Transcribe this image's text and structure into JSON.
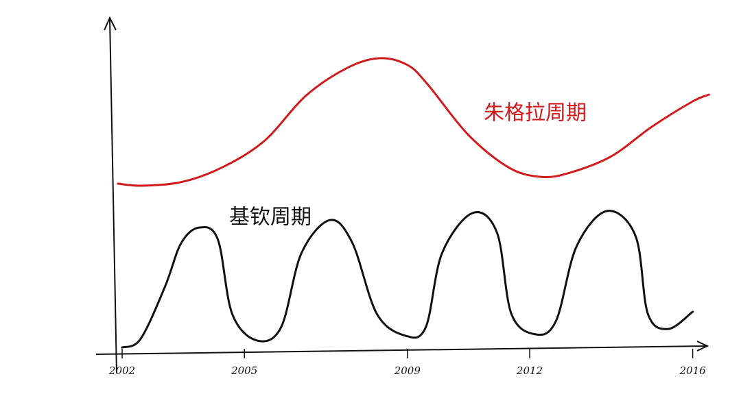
{
  "chart_data": {
    "type": "line",
    "xlim": [
      2001.8,
      2016.4
    ],
    "ylim": [
      0,
      100
    ],
    "xticks": [
      2002,
      2005,
      2009,
      2012,
      2016
    ],
    "series": [
      {
        "name": "朱格拉周期",
        "color": "#d01a1c",
        "x": [
          2001.9,
          2002.5,
          2003.5,
          2004.5,
          2005.5,
          2006.5,
          2007.5,
          2008.3,
          2009,
          2009.5,
          2010.5,
          2011.5,
          2012.3,
          2013,
          2014,
          2015,
          2016,
          2016.4
        ],
        "values": [
          50.6,
          50,
          51.2,
          55.7,
          63.4,
          76.6,
          84.8,
          87.8,
          85.8,
          80,
          65,
          55.3,
          52.6,
          53.9,
          58.7,
          67.5,
          75,
          77
        ]
      },
      {
        "name": "基钦周期",
        "color": "#111111",
        "x": [
          2002,
          2002.45,
          2003.05,
          2003.45,
          2003.9,
          2004.35,
          2004.7,
          2005.3,
          2005.9,
          2006.4,
          2007.1,
          2007.65,
          2008.25,
          2008.95,
          2009.45,
          2009.85,
          2010.6,
          2011.2,
          2011.55,
          2012.15,
          2012.65,
          2013.15,
          2013.9,
          2014.6,
          2014.9,
          2015.4,
          2016
        ],
        "values": [
          2,
          4.5,
          20,
          33,
          37.6,
          34,
          12,
          4.1,
          8,
          30,
          39.8,
          33,
          12,
          5.5,
          8,
          30,
          41.9,
          36,
          12,
          5.9,
          10,
          32,
          42.5,
          35,
          12,
          7.5,
          12.6
        ]
      }
    ]
  }
}
